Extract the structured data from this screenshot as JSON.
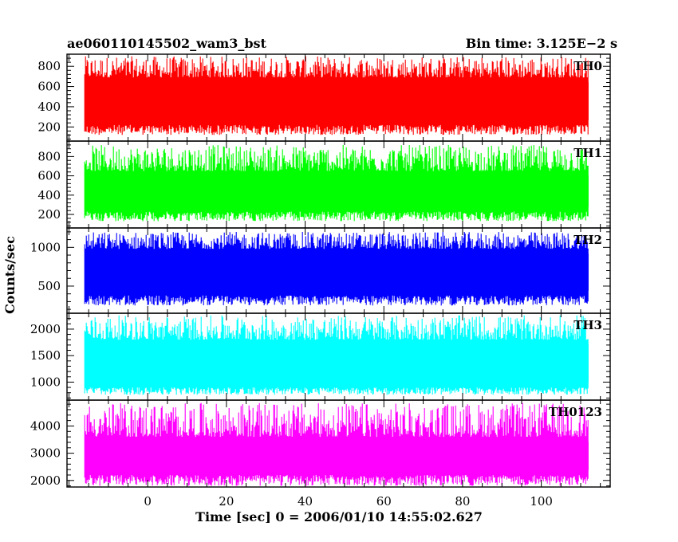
{
  "chart_data": {
    "type": "line",
    "title_left": "ae060110145502_wam3_bst",
    "title_right": "Bin time: 3.125E−2 s",
    "xlabel": "Time [sec] 0 = 2006/01/10 14:55:02.627",
    "ylabel": "Counts/sec",
    "xlim": [
      -20.5,
      117.5
    ],
    "x_ticks": [
      0,
      20,
      40,
      60,
      80,
      100
    ],
    "data_x_range": [
      -16,
      112
    ],
    "bin_time_s": 0.03125,
    "panels": [
      {
        "name": "TH0",
        "color": "#ff0000",
        "ylim": [
          60,
          920
        ],
        "y_ticks": [
          200,
          400,
          600,
          800
        ],
        "baseline_mean": 450,
        "noise_range": [
          120,
          900
        ],
        "band": [
          220,
          690
        ]
      },
      {
        "name": "TH1",
        "color": "#00ff00",
        "ylim": [
          60,
          960
        ],
        "y_ticks": [
          200,
          400,
          600,
          800
        ],
        "baseline_mean": 430,
        "noise_range": [
          130,
          920
        ],
        "band": [
          230,
          650
        ]
      },
      {
        "name": "TH2",
        "color": "#0000ff",
        "ylim": [
          150,
          1250
        ],
        "y_ticks": [
          500,
          1000
        ],
        "baseline_mean": 680,
        "noise_range": [
          250,
          1200
        ],
        "band": [
          380,
          980
        ]
      },
      {
        "name": "TH3",
        "color": "#00ffff",
        "ylim": [
          660,
          2300
        ],
        "y_ticks": [
          1000,
          1500,
          2000
        ],
        "baseline_mean": 1350,
        "noise_range": [
          760,
          2260
        ],
        "band": [
          900,
          1800
        ]
      },
      {
        "name": "TH0123",
        "color": "#ff00ff",
        "ylim": [
          1760,
          4950
        ],
        "y_ticks": [
          2000,
          3000,
          4000
        ],
        "baseline_mean": 2900,
        "noise_range": [
          1800,
          4850
        ],
        "band": [
          2200,
          3600
        ]
      }
    ]
  }
}
